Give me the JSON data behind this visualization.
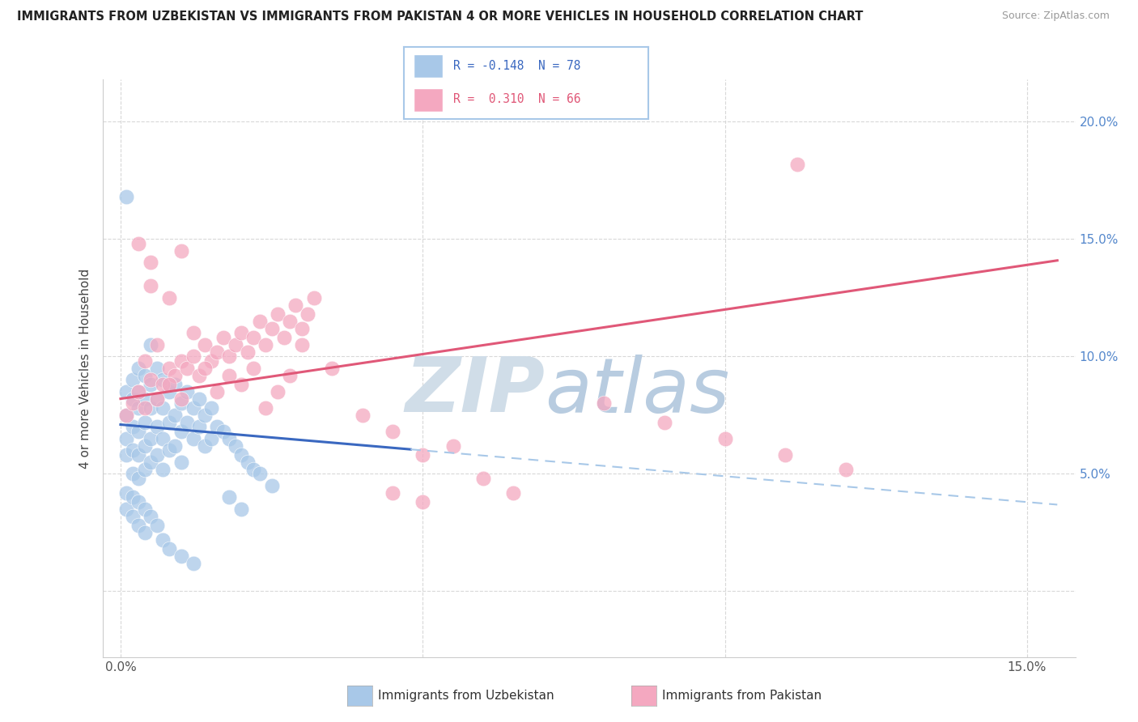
{
  "title": "IMMIGRANTS FROM UZBEKISTAN VS IMMIGRANTS FROM PAKISTAN 4 OR MORE VEHICLES IN HOUSEHOLD CORRELATION CHART",
  "source": "Source: ZipAtlas.com",
  "ylabel": "4 or more Vehicles in Household",
  "xlim": [
    -0.003,
    0.158
  ],
  "ylim": [
    -0.028,
    0.218
  ],
  "uzbekistan_color": "#a8c8e8",
  "pakistan_color": "#f4a8c0",
  "uzbekistan_line_color": "#3a68c0",
  "uzbekistan_dash_color": "#a8c8e8",
  "pakistan_line_color": "#e05878",
  "uzbekistan_R": -0.148,
  "uzbekistan_N": 78,
  "pakistan_R": 0.31,
  "pakistan_N": 66,
  "legend_border_color": "#a8c8e8",
  "background": "#ffffff",
  "grid_color": "#d8d8d8",
  "right_tick_color": "#5588cc",
  "watermark_zip_color": "#d0dde8",
  "watermark_atlas_color": "#b8cce0",
  "uz_line_intercept": 0.071,
  "uz_line_slope": -0.22,
  "uz_solid_xend": 0.048,
  "pk_line_intercept": 0.082,
  "pk_line_slope": 0.38,
  "uzbekistan_scatter": [
    [
      0.001,
      0.085
    ],
    [
      0.001,
      0.075
    ],
    [
      0.001,
      0.065
    ],
    [
      0.001,
      0.058
    ],
    [
      0.002,
      0.09
    ],
    [
      0.002,
      0.082
    ],
    [
      0.002,
      0.07
    ],
    [
      0.002,
      0.06
    ],
    [
      0.002,
      0.05
    ],
    [
      0.003,
      0.095
    ],
    [
      0.003,
      0.085
    ],
    [
      0.003,
      0.078
    ],
    [
      0.003,
      0.068
    ],
    [
      0.003,
      0.058
    ],
    [
      0.003,
      0.048
    ],
    [
      0.004,
      0.092
    ],
    [
      0.004,
      0.082
    ],
    [
      0.004,
      0.072
    ],
    [
      0.004,
      0.062
    ],
    [
      0.004,
      0.052
    ],
    [
      0.005,
      0.105
    ],
    [
      0.005,
      0.088
    ],
    [
      0.005,
      0.078
    ],
    [
      0.005,
      0.065
    ],
    [
      0.005,
      0.055
    ],
    [
      0.006,
      0.095
    ],
    [
      0.006,
      0.082
    ],
    [
      0.006,
      0.07
    ],
    [
      0.006,
      0.058
    ],
    [
      0.007,
      0.09
    ],
    [
      0.007,
      0.078
    ],
    [
      0.007,
      0.065
    ],
    [
      0.007,
      0.052
    ],
    [
      0.008,
      0.085
    ],
    [
      0.008,
      0.072
    ],
    [
      0.008,
      0.06
    ],
    [
      0.009,
      0.088
    ],
    [
      0.009,
      0.075
    ],
    [
      0.009,
      0.062
    ],
    [
      0.01,
      0.08
    ],
    [
      0.01,
      0.068
    ],
    [
      0.01,
      0.055
    ],
    [
      0.011,
      0.085
    ],
    [
      0.011,
      0.072
    ],
    [
      0.012,
      0.078
    ],
    [
      0.012,
      0.065
    ],
    [
      0.013,
      0.082
    ],
    [
      0.013,
      0.07
    ],
    [
      0.014,
      0.075
    ],
    [
      0.014,
      0.062
    ],
    [
      0.015,
      0.078
    ],
    [
      0.015,
      0.065
    ],
    [
      0.016,
      0.07
    ],
    [
      0.017,
      0.068
    ],
    [
      0.018,
      0.065
    ],
    [
      0.019,
      0.062
    ],
    [
      0.02,
      0.058
    ],
    [
      0.021,
      0.055
    ],
    [
      0.022,
      0.052
    ],
    [
      0.023,
      0.05
    ],
    [
      0.001,
      0.042
    ],
    [
      0.001,
      0.035
    ],
    [
      0.002,
      0.04
    ],
    [
      0.002,
      0.032
    ],
    [
      0.003,
      0.038
    ],
    [
      0.003,
      0.028
    ],
    [
      0.004,
      0.035
    ],
    [
      0.004,
      0.025
    ],
    [
      0.005,
      0.032
    ],
    [
      0.006,
      0.028
    ],
    [
      0.007,
      0.022
    ],
    [
      0.008,
      0.018
    ],
    [
      0.01,
      0.015
    ],
    [
      0.012,
      0.012
    ],
    [
      0.001,
      0.168
    ],
    [
      0.025,
      0.045
    ],
    [
      0.018,
      0.04
    ],
    [
      0.02,
      0.035
    ]
  ],
  "pakistan_scatter": [
    [
      0.001,
      0.075
    ],
    [
      0.002,
      0.08
    ],
    [
      0.003,
      0.085
    ],
    [
      0.004,
      0.078
    ],
    [
      0.005,
      0.09
    ],
    [
      0.006,
      0.082
    ],
    [
      0.007,
      0.088
    ],
    [
      0.008,
      0.095
    ],
    [
      0.009,
      0.092
    ],
    [
      0.01,
      0.098
    ],
    [
      0.011,
      0.095
    ],
    [
      0.012,
      0.1
    ],
    [
      0.013,
      0.092
    ],
    [
      0.014,
      0.105
    ],
    [
      0.015,
      0.098
    ],
    [
      0.016,
      0.102
    ],
    [
      0.017,
      0.108
    ],
    [
      0.018,
      0.1
    ],
    [
      0.019,
      0.105
    ],
    [
      0.02,
      0.11
    ],
    [
      0.021,
      0.102
    ],
    [
      0.022,
      0.108
    ],
    [
      0.023,
      0.115
    ],
    [
      0.024,
      0.105
    ],
    [
      0.025,
      0.112
    ],
    [
      0.026,
      0.118
    ],
    [
      0.027,
      0.108
    ],
    [
      0.028,
      0.115
    ],
    [
      0.029,
      0.122
    ],
    [
      0.03,
      0.112
    ],
    [
      0.031,
      0.118
    ],
    [
      0.032,
      0.125
    ],
    [
      0.004,
      0.098
    ],
    [
      0.006,
      0.105
    ],
    [
      0.008,
      0.088
    ],
    [
      0.01,
      0.082
    ],
    [
      0.012,
      0.11
    ],
    [
      0.014,
      0.095
    ],
    [
      0.016,
      0.085
    ],
    [
      0.018,
      0.092
    ],
    [
      0.02,
      0.088
    ],
    [
      0.022,
      0.095
    ],
    [
      0.024,
      0.078
    ],
    [
      0.026,
      0.085
    ],
    [
      0.028,
      0.092
    ],
    [
      0.03,
      0.105
    ],
    [
      0.035,
      0.095
    ],
    [
      0.04,
      0.075
    ],
    [
      0.045,
      0.068
    ],
    [
      0.05,
      0.058
    ],
    [
      0.055,
      0.062
    ],
    [
      0.06,
      0.048
    ],
    [
      0.065,
      0.042
    ],
    [
      0.003,
      0.148
    ],
    [
      0.005,
      0.14
    ],
    [
      0.005,
      0.13
    ],
    [
      0.008,
      0.125
    ],
    [
      0.01,
      0.145
    ],
    [
      0.112,
      0.182
    ],
    [
      0.08,
      0.08
    ],
    [
      0.09,
      0.072
    ],
    [
      0.1,
      0.065
    ],
    [
      0.11,
      0.058
    ],
    [
      0.12,
      0.052
    ],
    [
      0.045,
      0.042
    ],
    [
      0.05,
      0.038
    ]
  ]
}
